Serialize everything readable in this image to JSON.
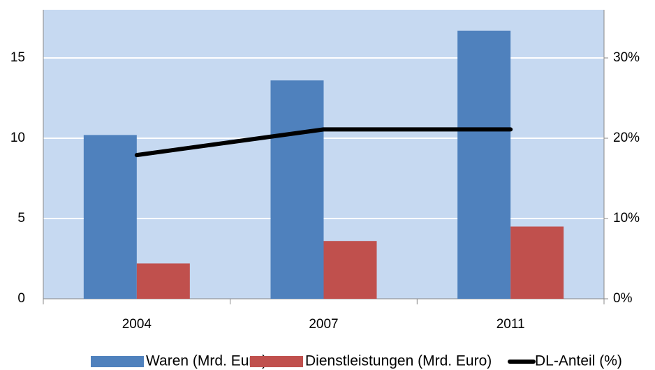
{
  "chart_data": {
    "type": "bar",
    "categories": [
      "2004",
      "2007",
      "2011"
    ],
    "series": [
      {
        "name": "Waren (Mrd. Euro)",
        "color": "#4f81bd",
        "values": [
          10.2,
          13.6,
          16.7
        ]
      },
      {
        "name": "Dienstleistungen (Mrd. Euro)",
        "color": "#c0504d",
        "values": [
          2.2,
          3.6,
          4.5
        ]
      },
      {
        "name": "DL-Anteil (%)",
        "color": "#000000",
        "type": "line",
        "axis": "y2",
        "values": [
          17.9,
          21.1,
          21.1
        ]
      }
    ],
    "ylim": [
      0,
      18
    ],
    "yticks": [
      0,
      5,
      10,
      15
    ],
    "y2lim": [
      0,
      36
    ],
    "y2ticks": [
      {
        "value": 0,
        "label": "0%"
      },
      {
        "value": 10,
        "label": "10%"
      },
      {
        "value": 20,
        "label": "20%"
      },
      {
        "value": 30,
        "label": "30%"
      }
    ],
    "grid": true,
    "legend": "bottom"
  }
}
